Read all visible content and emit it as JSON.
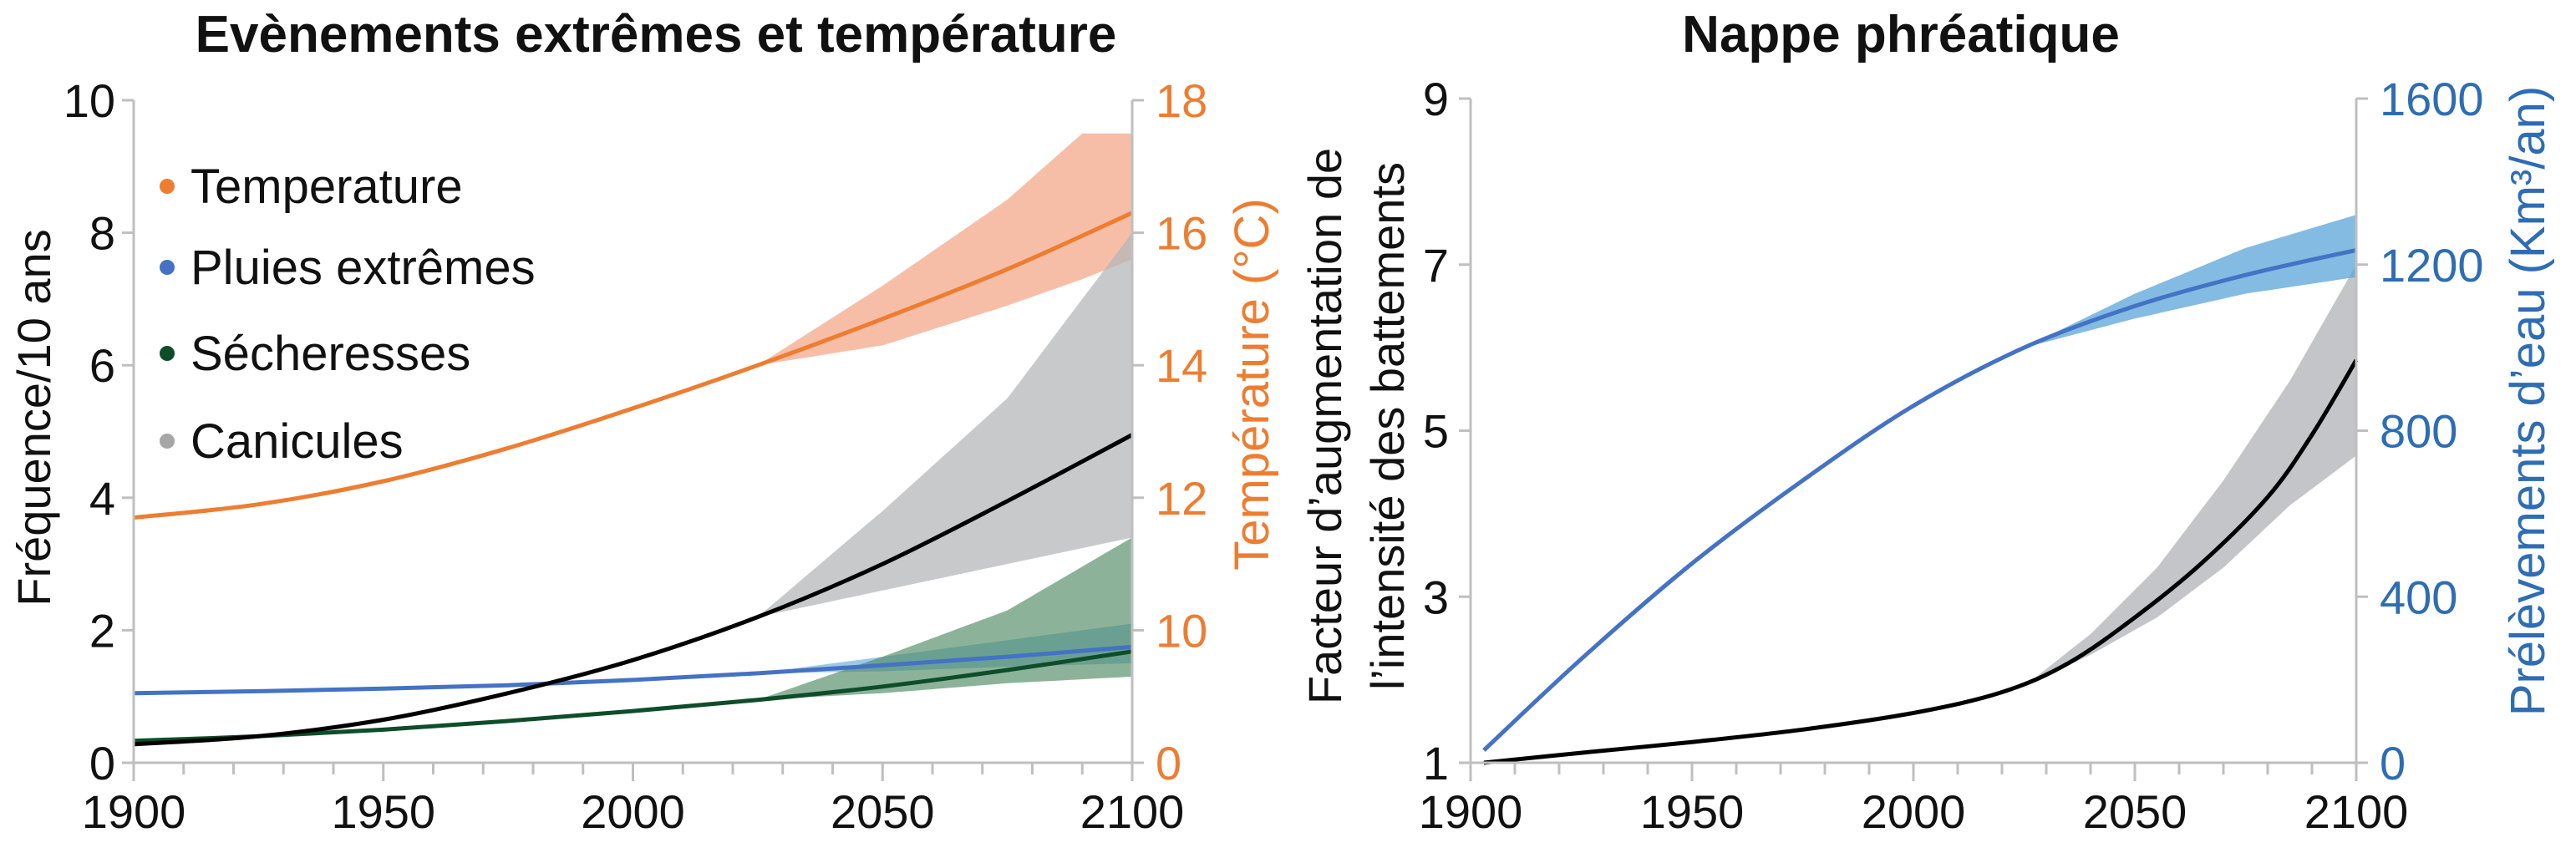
{
  "colors": {
    "temperature": "#ED7D31",
    "temperature_band": "#F4A88A",
    "pluies": "#4472C4",
    "pluies_band": "#5BA4D8",
    "secheresses": "#0E4D2A",
    "secheresses_band": "#4E8A62",
    "canicules": "#000000",
    "canicules_band": "#B5B7BA",
    "legend_canicules_marker": "#A6A6A6",
    "axis_orange": "#ED7D31",
    "axis_blue": "#2E6DB4",
    "axis_line": "#BFBFBF"
  },
  "chart_data": [
    {
      "type": "line",
      "title": "Evènements extrêmes et température",
      "ylabel": "Fréquence/10 ans",
      "ylabel_right": "Température (°C)",
      "xlim": [
        1900,
        2100
      ],
      "ylim": [
        0,
        10
      ],
      "ylim_right": [
        0,
        18
      ],
      "x_ticks": [
        "1900",
        "1950",
        "2000",
        "2050",
        "2100"
      ],
      "y_ticks": [
        "0",
        "2",
        "4",
        "6",
        "8",
        "10"
      ],
      "y_ticks_right": [
        "0",
        "10",
        "12",
        "14",
        "16",
        "18"
      ],
      "legend_position": "top-left",
      "series": [
        {
          "name": "Temperature",
          "axis": "right",
          "color": "temperature",
          "x": [
            1900,
            1925,
            1950,
            1975,
            2000,
            2025,
            2050,
            2075,
            2100
          ],
          "y": [
            11.7,
            11.9,
            12.25,
            12.75,
            13.35,
            14.0,
            14.7,
            15.45,
            16.3
          ],
          "band": {
            "x": [
              2025,
              2050,
              2075,
              2090,
              2100
            ],
            "low": [
              14.0,
              14.3,
              14.9,
              15.3,
              15.6
            ],
            "high": [
              14.0,
              15.2,
              16.5,
              17.5,
              17.5
            ]
          }
        },
        {
          "name": "Pluies extrêmes",
          "axis": "left",
          "color": "pluies",
          "x": [
            1900,
            1925,
            1950,
            1975,
            2000,
            2025,
            2050,
            2075,
            2100
          ],
          "y": [
            1.05,
            1.08,
            1.12,
            1.17,
            1.25,
            1.35,
            1.47,
            1.6,
            1.75
          ],
          "band": {
            "x": [
              2025,
              2050,
              2075,
              2100
            ],
            "low": [
              1.35,
              1.38,
              1.45,
              1.5
            ],
            "high": [
              1.35,
              1.6,
              1.85,
              2.1
            ]
          }
        },
        {
          "name": "Sécheresses",
          "axis": "left",
          "color": "secheresses",
          "x": [
            1900,
            1925,
            1950,
            1975,
            2000,
            2025,
            2050,
            2075,
            2100
          ],
          "y": [
            0.33,
            0.4,
            0.5,
            0.63,
            0.78,
            0.95,
            1.15,
            1.4,
            1.68
          ],
          "band": {
            "x": [
              2025,
              2050,
              2075,
              2100
            ],
            "low": [
              0.95,
              1.05,
              1.2,
              1.3
            ],
            "high": [
              0.95,
              1.6,
              2.3,
              3.4
            ]
          }
        },
        {
          "name": "Canicules",
          "axis": "left",
          "color": "canicules",
          "marker_color": "legend_canicules_marker",
          "x": [
            1900,
            1925,
            1950,
            1975,
            2000,
            2025,
            2050,
            2075,
            2100
          ],
          "y": [
            0.28,
            0.4,
            0.65,
            1.05,
            1.55,
            2.2,
            3.0,
            3.95,
            4.95
          ],
          "band": {
            "x": [
              2025,
              2050,
              2075,
              2100
            ],
            "low": [
              2.2,
              2.6,
              3.0,
              3.4
            ],
            "high": [
              2.2,
              3.8,
              5.5,
              8.0
            ]
          }
        }
      ]
    },
    {
      "type": "line",
      "title": "Nappe phréatique",
      "ylabel": "Facteur d’augmentation de l’intensité des battements",
      "ylabel_lines": [
        "Facteur d’augmentation de",
        "l’intensité des battements"
      ],
      "ylabel_right": "Prélèvements d’eau  (Km³/an)",
      "xlim": [
        1900,
        2100
      ],
      "ylim": [
        1,
        9
      ],
      "ylim_right": [
        0,
        1600
      ],
      "x_ticks": [
        "1900",
        "1950",
        "2000",
        "2050",
        "2100"
      ],
      "y_ticks": [
        "1",
        "3",
        "5",
        "7",
        "9"
      ],
      "y_ticks_right": [
        "0",
        "400",
        "800",
        "1200",
        "1600"
      ],
      "series": [
        {
          "axis": "left",
          "color": "canicules",
          "x": [
            1903,
            1925,
            1950,
            1975,
            2000,
            2020,
            2035,
            2050,
            2065,
            2080,
            2090,
            2100
          ],
          "y": [
            1.0,
            1.12,
            1.25,
            1.4,
            1.6,
            1.85,
            2.2,
            2.75,
            3.4,
            4.2,
            4.95,
            5.85
          ],
          "band": {
            "x": [
              2025,
              2040,
              2055,
              2070,
              2085,
              2100
            ],
            "low": [
              1.92,
              2.3,
              2.75,
              3.35,
              4.1,
              4.7
            ],
            "high": [
              1.92,
              2.55,
              3.35,
              4.4,
              5.6,
              7.0
            ]
          }
        },
        {
          "axis": "right",
          "color": "pluies",
          "x": [
            1903,
            1925,
            1950,
            1975,
            2000,
            2025,
            2050,
            2075,
            2100
          ],
          "y": [
            30,
            250,
            480,
            680,
            860,
            1000,
            1100,
            1175,
            1235
          ],
          "band": {
            "x": [
              2025,
              2050,
              2075,
              2100
            ],
            "low": [
              1000,
              1070,
              1130,
              1170
            ],
            "high": [
              1000,
              1130,
              1240,
              1320
            ]
          }
        }
      ]
    }
  ]
}
